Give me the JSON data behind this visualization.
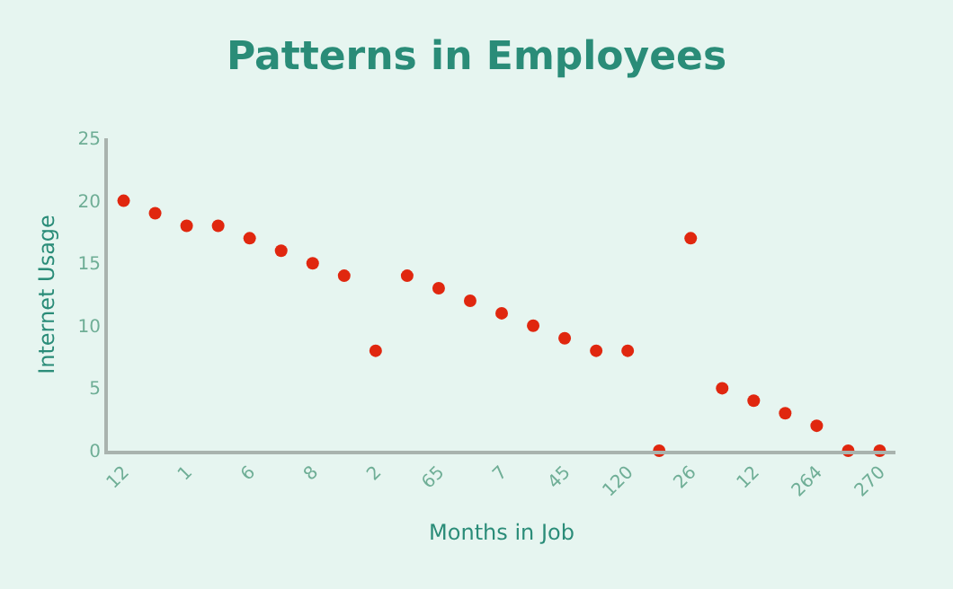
{
  "chart_data": {
    "type": "scatter",
    "title": "Patterns in Employees",
    "xlabel": "Months in Job",
    "ylabel": "Internet Usage",
    "categories": [
      "12",
      null,
      "1",
      null,
      "6",
      null,
      "8",
      null,
      "2",
      null,
      "65",
      null,
      "7",
      null,
      "45",
      null,
      "120",
      null,
      "26",
      null,
      "12",
      null,
      "264",
      null,
      "270"
    ],
    "series": [
      {
        "color": "#e0270f",
        "values": [
          20,
          19,
          18,
          18,
          17,
          16,
          15,
          14,
          8,
          14,
          13,
          12,
          11,
          10,
          9,
          8,
          8,
          0,
          17,
          5,
          4,
          3,
          2,
          0,
          0
        ]
      }
    ],
    "ylim": [
      0,
      25
    ],
    "yticks": [
      0,
      5,
      10,
      15,
      20,
      25
    ],
    "grid": false,
    "marker": "circle"
  }
}
